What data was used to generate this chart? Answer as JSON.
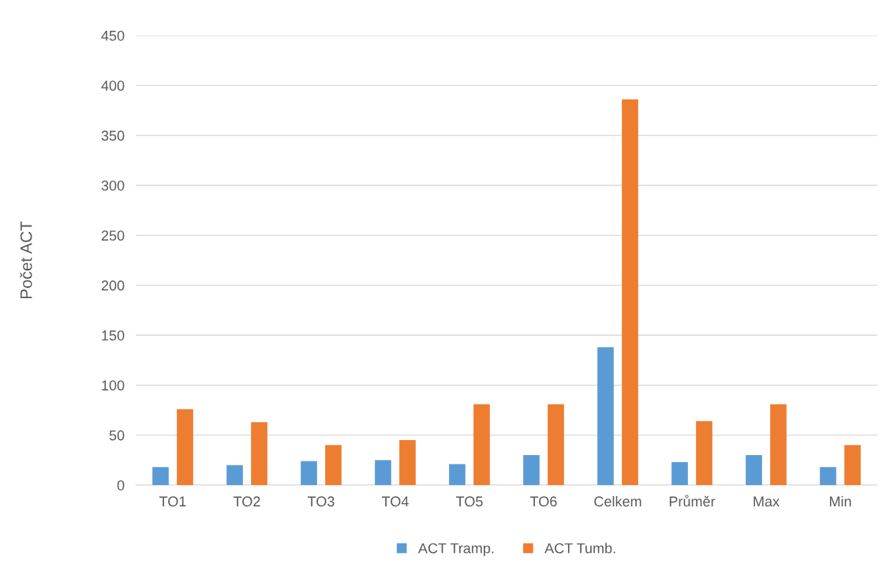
{
  "chart_data": {
    "type": "bar",
    "ylabel": "Počet ACT",
    "categories": [
      "TO1",
      "TO2",
      "TO3",
      "TO4",
      "TO5",
      "TO6",
      "Celkem",
      "Průměr",
      "Max",
      "Min"
    ],
    "series": [
      {
        "name": "ACT Tramp.",
        "color": "#5b9bd5",
        "values": [
          18,
          20,
          24,
          25,
          21,
          30,
          138,
          23,
          30,
          18
        ]
      },
      {
        "name": "ACT Tumb.",
        "color": "#ed7d31",
        "values": [
          76,
          63,
          40,
          45,
          81,
          81,
          386,
          64,
          81,
          40
        ]
      }
    ],
    "ylim": [
      0,
      450
    ],
    "yticks": [
      0,
      50,
      100,
      150,
      200,
      250,
      300,
      350,
      400,
      450
    ],
    "grid": "y",
    "legend": "bottom"
  }
}
